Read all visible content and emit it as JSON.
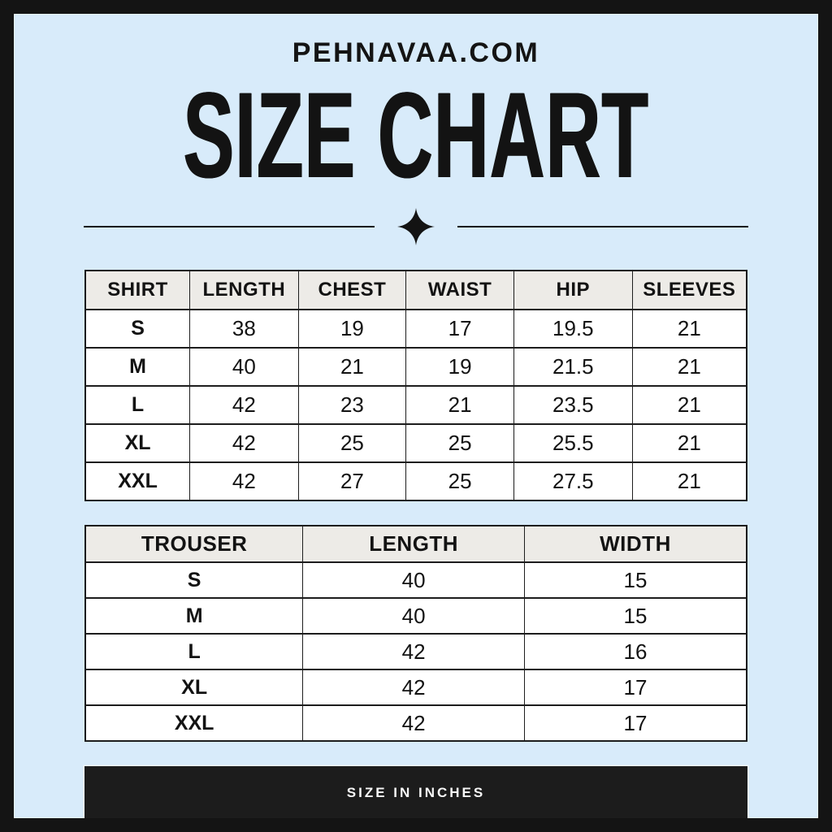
{
  "brand": "PEHNAVAA.COM",
  "title": "SIZE CHART",
  "divider_icon": "four-point-sparkle",
  "colors": {
    "frame": "#141414",
    "background": "#d8ebfa",
    "table_header_bg": "#edebe7",
    "table_border": "#1d1d1d",
    "footer_bg": "#1c1c1c",
    "footer_text": "#f7f7f7",
    "text": "#131313"
  },
  "shirt_table": {
    "headers": [
      "SHIRT",
      "LENGTH",
      "CHEST",
      "WAIST",
      "HIP",
      "SLEEVES"
    ],
    "rows": [
      [
        "S",
        "38",
        "19",
        "17",
        "19.5",
        "21"
      ],
      [
        "M",
        "40",
        "21",
        "19",
        "21.5",
        "21"
      ],
      [
        "L",
        "42",
        "23",
        "21",
        "23.5",
        "21"
      ],
      [
        "XL",
        "42",
        "25",
        "25",
        "25.5",
        "21"
      ],
      [
        "XXL",
        "42",
        "27",
        "25",
        "27.5",
        "21"
      ]
    ]
  },
  "trouser_table": {
    "headers": [
      "TROUSER",
      "LENGTH",
      "WIDTH"
    ],
    "rows": [
      [
        "S",
        "40",
        "15"
      ],
      [
        "M",
        "40",
        "15"
      ],
      [
        "L",
        "42",
        "16"
      ],
      [
        "XL",
        "42",
        "17"
      ],
      [
        "XXL",
        "42",
        "17"
      ]
    ]
  },
  "footer": {
    "label": "SIZE IN INCHES"
  }
}
